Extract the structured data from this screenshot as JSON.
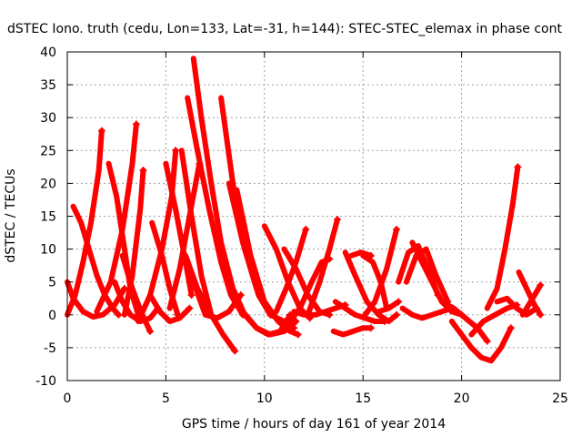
{
  "chart_data": {
    "type": "scatter",
    "title": "dSTEC Iono. truth (cedu, Lon=133, Lat=-31, h=144): STEC-STEC_elemax in phase cont",
    "xlabel": "GPS time / hours of day 161 of year 2014",
    "ylabel": "dSTEC  / TECUs",
    "xlim": [
      0,
      25
    ],
    "ylim": [
      -10,
      40
    ],
    "xticks": [
      0,
      5,
      10,
      15,
      20,
      25
    ],
    "yticks": [
      -10,
      -5,
      0,
      5,
      10,
      15,
      20,
      25,
      30,
      35,
      40
    ],
    "grid": true,
    "marker": "+",
    "color": "#ff0000",
    "series": [
      {
        "x": [
          0.0,
          0.4,
          0.8,
          1.2,
          1.6,
          1.75
        ],
        "y": [
          0.0,
          3.0,
          8.0,
          14.0,
          22.0,
          28.0
        ]
      },
      {
        "x": [
          0.3,
          0.7,
          1.1,
          1.5,
          1.9,
          2.3,
          2.6
        ],
        "y": [
          16.5,
          14.0,
          10.0,
          6.0,
          3.0,
          1.0,
          0.0
        ]
      },
      {
        "x": [
          0.0,
          0.3,
          0.8,
          1.3,
          1.8,
          2.4,
          2.9
        ],
        "y": [
          5.0,
          2.5,
          0.5,
          -0.3,
          0.0,
          1.5,
          4.0
        ]
      },
      {
        "x": [
          1.5,
          2.2,
          2.8,
          3.3,
          3.5
        ],
        "y": [
          0.5,
          5.0,
          13.0,
          23.0,
          29.0
        ]
      },
      {
        "x": [
          2.1,
          2.5,
          2.9,
          3.2,
          3.6
        ],
        "y": [
          23.0,
          18.0,
          10.0,
          4.0,
          0.0
        ]
      },
      {
        "x": [
          2.4,
          2.8,
          3.2,
          3.7,
          4.2,
          4.6
        ],
        "y": [
          5.0,
          2.0,
          0.0,
          -1.0,
          -0.5,
          1.0
        ]
      },
      {
        "x": [
          2.9,
          3.3,
          3.7,
          3.85
        ],
        "y": [
          0.0,
          6.0,
          16.0,
          22.0
        ]
      },
      {
        "x": [
          2.8,
          3.3,
          3.8,
          4.2
        ],
        "y": [
          9.0,
          4.0,
          0.0,
          -2.5
        ]
      },
      {
        "x": [
          3.6,
          4.2,
          4.8,
          5.3,
          5.5
        ],
        "y": [
          -1.0,
          3.0,
          10.0,
          18.0,
          25.0
        ]
      },
      {
        "x": [
          4.3,
          4.8,
          5.2,
          5.6
        ],
        "y": [
          14.0,
          9.0,
          4.0,
          0.0
        ]
      },
      {
        "x": [
          4.2,
          4.7,
          5.2,
          5.7,
          6.2
        ],
        "y": [
          3.0,
          0.5,
          -1.0,
          -0.5,
          1.0
        ]
      },
      {
        "x": [
          5.0,
          5.5,
          6.0,
          6.3
        ],
        "y": [
          23.0,
          16.0,
          8.0,
          3.0
        ]
      },
      {
        "x": [
          5.2,
          5.7,
          6.2,
          6.7
        ],
        "y": [
          1.0,
          7.0,
          15.0,
          23.0
        ]
      },
      {
        "x": [
          5.8,
          6.3,
          6.8,
          7.3
        ],
        "y": [
          25.0,
          15.0,
          6.0,
          0.0
        ]
      },
      {
        "x": [
          6.0,
          6.6,
          7.3,
          7.9,
          8.5
        ],
        "y": [
          9.0,
          4.0,
          0.0,
          -3.0,
          -5.5
        ]
      },
      {
        "x": [
          6.4,
          6.8,
          7.3,
          7.8,
          8.4,
          9.0
        ],
        "y": [
          39.0,
          30.0,
          20.0,
          11.0,
          4.0,
          0.0
        ]
      },
      {
        "x": [
          6.1,
          6.6,
          7.2,
          7.8,
          8.3,
          8.9
        ],
        "y": [
          33.0,
          25.0,
          16.0,
          8.0,
          3.0,
          0.0
        ]
      },
      {
        "x": [
          6.4,
          7.0,
          7.6,
          8.2,
          8.8
        ],
        "y": [
          5.0,
          0.0,
          -0.5,
          0.5,
          3.0
        ]
      },
      {
        "x": [
          7.8,
          8.4,
          9.0,
          9.7,
          10.3
        ],
        "y": [
          33.0,
          20.0,
          10.0,
          3.0,
          0.0
        ]
      },
      {
        "x": [
          8.2,
          8.9,
          9.6,
          10.3,
          11.0,
          11.5
        ],
        "y": [
          20.0,
          11.0,
          4.0,
          0.0,
          -1.0,
          -2.0
        ]
      },
      {
        "x": [
          8.6,
          9.3,
          10.0,
          10.7,
          11.3,
          11.7
        ],
        "y": [
          19.0,
          9.0,
          2.0,
          -1.0,
          -2.5,
          -3.0
        ]
      },
      {
        "x": [
          8.3,
          8.9,
          9.6,
          10.3,
          11.0,
          11.6
        ],
        "y": [
          4.0,
          0.5,
          -2.0,
          -3.0,
          -2.5,
          -1.0
        ]
      },
      {
        "x": [
          9.0,
          9.6,
          10.2,
          10.8,
          11.3
        ],
        "y": [
          0.0,
          -2.0,
          -3.0,
          -2.5,
          0.0
        ]
      },
      {
        "x": [
          10.0,
          10.6,
          11.2,
          11.8,
          12.3
        ],
        "y": [
          13.5,
          10.0,
          5.0,
          1.0,
          -0.5
        ]
      },
      {
        "x": [
          10.6,
          11.1,
          11.6,
          12.1
        ],
        "y": [
          0.5,
          4.0,
          8.0,
          13.0
        ]
      },
      {
        "x": [
          11.0,
          11.6,
          12.2,
          12.8,
          13.3
        ],
        "y": [
          10.0,
          7.0,
          3.0,
          0.5,
          0.0
        ]
      },
      {
        "x": [
          11.3,
          11.8,
          12.4,
          12.9,
          13.3
        ],
        "y": [
          -1.0,
          1.0,
          5.0,
          8.0,
          8.5
        ]
      },
      {
        "x": [
          12.2,
          12.8,
          13.3,
          13.7
        ],
        "y": [
          0.0,
          5.0,
          10.0,
          14.5
        ]
      },
      {
        "x": [
          11.5,
          12.0,
          12.6,
          13.1,
          13.6,
          14.1
        ],
        "y": [
          0.5,
          0.0,
          0.0,
          0.5,
          1.0,
          1.5
        ]
      },
      {
        "x": [
          13.5,
          14.0,
          14.5,
          15.0,
          15.4
        ],
        "y": [
          -2.5,
          -3.0,
          -2.5,
          -2.0,
          -2.0
        ]
      },
      {
        "x": [
          13.6,
          14.1,
          14.6,
          15.1,
          15.6,
          16.1
        ],
        "y": [
          2.0,
          1.0,
          0.0,
          -0.5,
          -1.0,
          -1.0
        ]
      },
      {
        "x": [
          14.1,
          14.6,
          15.2,
          15.8,
          16.3,
          16.7
        ],
        "y": [
          9.5,
          6.0,
          2.0,
          0.0,
          -1.0,
          0.0
        ]
      },
      {
        "x": [
          14.4,
          14.9,
          15.4
        ],
        "y": [
          9.0,
          9.5,
          9.0
        ]
      },
      {
        "x": [
          15.1,
          15.6,
          16.2,
          16.7
        ],
        "y": [
          0.0,
          2.0,
          7.0,
          13.0
        ]
      },
      {
        "x": [
          15.0,
          15.5,
          15.9,
          16.2
        ],
        "y": [
          9.0,
          8.0,
          5.0,
          1.0
        ]
      },
      {
        "x": [
          15.8,
          16.3,
          16.8
        ],
        "y": [
          0.5,
          1.0,
          2.0
        ]
      },
      {
        "x": [
          16.8,
          17.3,
          17.8,
          18.3,
          18.8
        ],
        "y": [
          5.0,
          9.5,
          10.5,
          7.0,
          3.0
        ]
      },
      {
        "x": [
          17.2,
          17.7,
          18.2,
          18.7,
          19.3
        ],
        "y": [
          5.0,
          9.0,
          10.0,
          6.0,
          2.0
        ]
      },
      {
        "x": [
          17.0,
          17.5,
          18.0,
          18.5,
          19.0,
          19.5,
          20.0
        ],
        "y": [
          1.0,
          0.0,
          -0.5,
          0.0,
          0.5,
          1.0,
          0.0
        ]
      },
      {
        "x": [
          17.5,
          18.0,
          18.5,
          19.0,
          19.5,
          20.0
        ],
        "y": [
          11.0,
          8.0,
          5.0,
          2.0,
          0.5,
          0.0
        ]
      },
      {
        "x": [
          19.0,
          19.6,
          20.2,
          20.8,
          21.3
        ],
        "y": [
          2.0,
          1.0,
          -0.5,
          -2.0,
          -4.0
        ]
      },
      {
        "x": [
          19.5,
          20.0,
          20.5,
          21.0,
          21.5,
          22.0,
          22.5
        ],
        "y": [
          -1.0,
          -3.0,
          -5.0,
          -6.5,
          -7.0,
          -5.0,
          -2.0
        ]
      },
      {
        "x": [
          20.5,
          21.1,
          21.7,
          22.3,
          22.8
        ],
        "y": [
          -3.0,
          -1.0,
          0.0,
          1.0,
          1.5
        ]
      },
      {
        "x": [
          21.3,
          21.8,
          22.2,
          22.6,
          22.85
        ],
        "y": [
          1.0,
          4.0,
          10.0,
          17.0,
          22.5
        ]
      },
      {
        "x": [
          21.8,
          22.3,
          22.8,
          23.3,
          23.8
        ],
        "y": [
          2.0,
          2.5,
          1.0,
          0.0,
          1.0
        ]
      },
      {
        "x": [
          22.9,
          23.3,
          23.7,
          24.0
        ],
        "y": [
          6.5,
          4.0,
          1.5,
          0.0
        ]
      },
      {
        "x": [
          23.1,
          23.5,
          24.0
        ],
        "y": [
          0.0,
          2.0,
          4.5
        ]
      }
    ]
  }
}
